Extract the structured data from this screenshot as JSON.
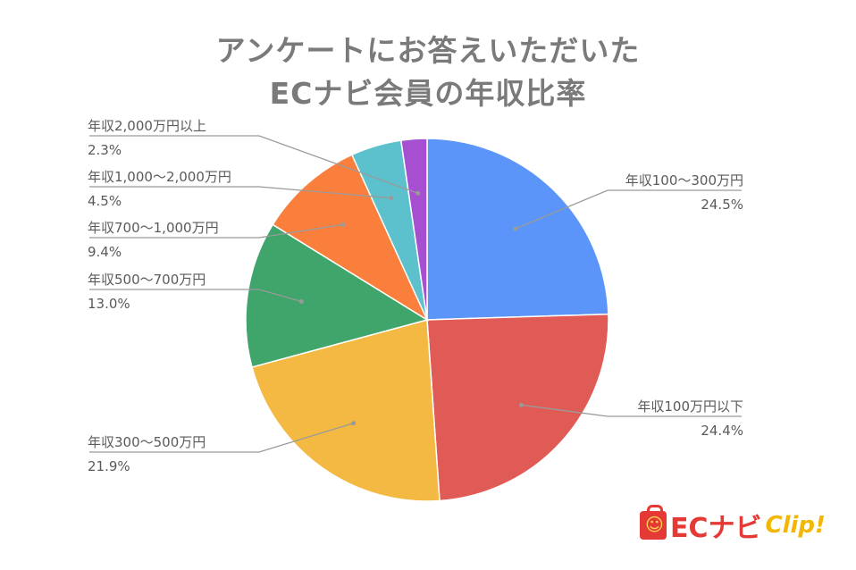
{
  "chart_data": {
    "type": "pie",
    "title_line1": "アンケートにお答えいただいた",
    "title_line2": "ECナビ会員の年収比率",
    "slices": [
      {
        "label": "年収100〜300万円",
        "value": 24.5,
        "display": "24.5%",
        "color": "#5b95f9"
      },
      {
        "label": "年収100万円以下",
        "value": 24.4,
        "display": "24.4%",
        "color": "#e05b56"
      },
      {
        "label": "年収300〜500万円",
        "value": 21.9,
        "display": "21.9%",
        "color": "#f4b942"
      },
      {
        "label": "年収500〜700万円",
        "value": 13.0,
        "display": "13.0%",
        "color": "#3fa56b"
      },
      {
        "label": "年収700〜1,000万円",
        "value": 9.4,
        "display": "9.4%",
        "color": "#fb7f3c"
      },
      {
        "label": "年収1,000〜2,000万円",
        "value": 4.5,
        "display": "4.5%",
        "color": "#5cc1cc"
      },
      {
        "label": "年収2,000万円以上",
        "value": 2.3,
        "display": "2.3%",
        "color": "#a64fd1"
      }
    ],
    "start_angle": "12 o'clock",
    "direction": "clockwise",
    "legend": "none (leader-line labels)"
  },
  "logo": {
    "brand": "ECナビ",
    "suffix": "Clip!"
  }
}
